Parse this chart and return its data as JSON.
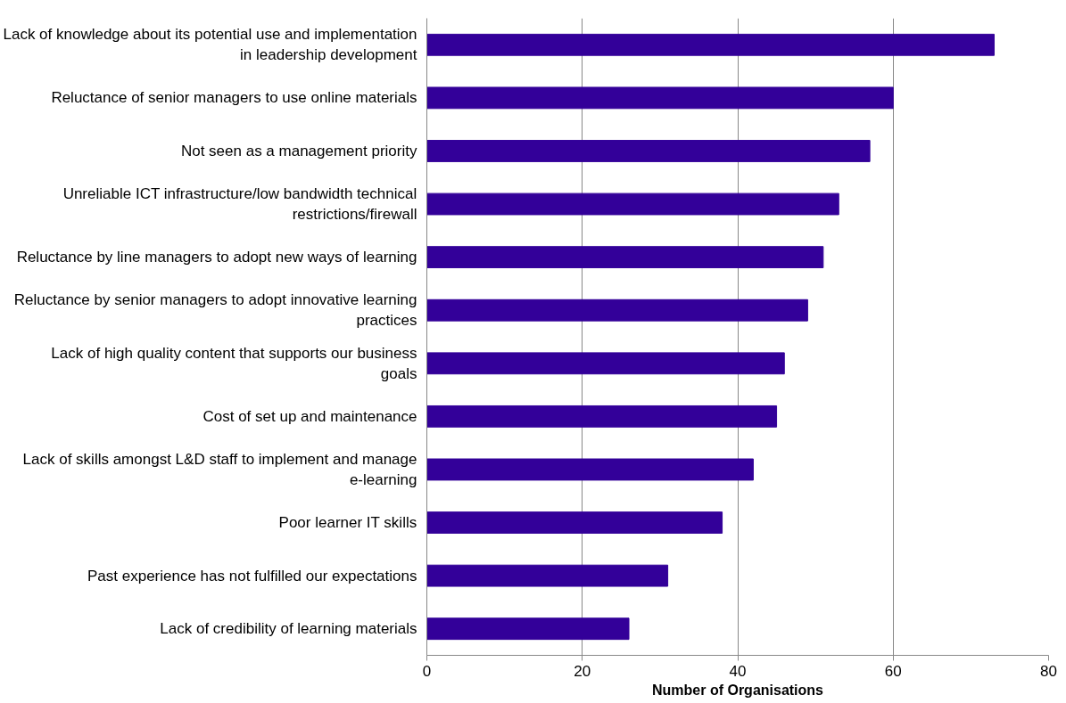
{
  "chart_data": {
    "type": "bar",
    "orientation": "horizontal",
    "xlabel": "Number of Organisations",
    "categories": [
      "Lack of knowledge about its potential use and implementation in leadership development",
      "Reluctance of senior managers to use online materials",
      "Not seen as a management priority",
      "Unreliable ICT infrastructure/low bandwidth technical restrictions/firewall",
      "Reluctance by line managers to adopt new ways of learning",
      "Reluctance by senior managers to adopt innovative learning practices",
      "Lack of high quality content that supports our business goals",
      "Cost of set up and maintenance",
      "Lack of skills amongst L&D staff to implement and manage e-learning",
      "Poor learner IT skills",
      "Past experience has not fulfilled our expectations",
      "Lack of credibility of learning materials"
    ],
    "values": [
      73,
      60,
      57,
      53,
      51,
      49,
      46,
      45,
      42,
      38,
      31,
      26
    ],
    "color": "#330099",
    "xlim": [
      0,
      80
    ],
    "xticks": [
      0,
      20,
      40,
      60,
      80
    ],
    "grid": "x"
  }
}
